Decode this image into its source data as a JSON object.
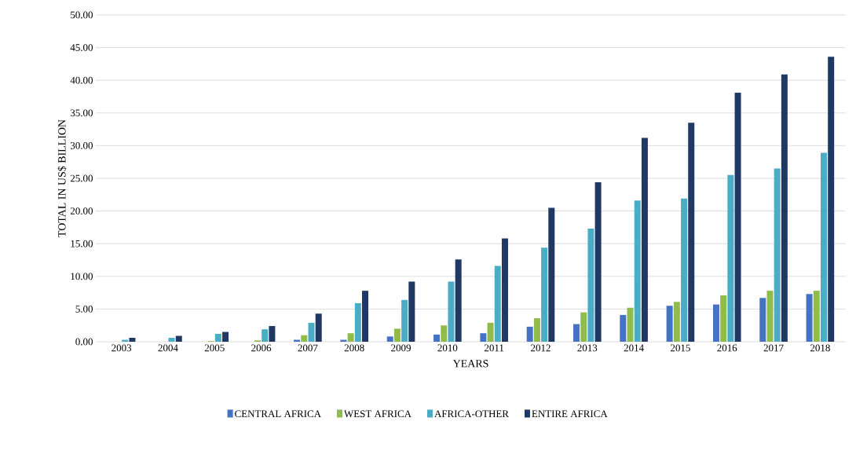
{
  "chart_data": {
    "type": "bar",
    "xlabel": "YEARS",
    "ylabel": "TOTAL IN US$ BILLION",
    "categories": [
      "2003",
      "2004",
      "2005",
      "2006",
      "2007",
      "2008",
      "2009",
      "2010",
      "2011",
      "2012",
      "2013",
      "2014",
      "2015",
      "2016",
      "2017",
      "2018"
    ],
    "series": [
      {
        "name": "CENTRAL AFRICA",
        "color": "#4472c4",
        "values": [
          0,
          0,
          0,
          0,
          0.3,
          0.3,
          0.8,
          1.1,
          1.3,
          2.3,
          2.7,
          4.1,
          5.5,
          5.7,
          6.7,
          7.3
        ]
      },
      {
        "name": "WEST AFRICA",
        "color": "#8fbc4a",
        "values": [
          0,
          0,
          0.1,
          0.2,
          1.0,
          1.3,
          2.0,
          2.5,
          2.9,
          3.6,
          4.5,
          5.2,
          6.1,
          7.1,
          7.8,
          7.8
        ]
      },
      {
        "name": "AFRICA-OTHER",
        "color": "#4bacc6",
        "values": [
          0.3,
          0.6,
          1.2,
          1.9,
          2.9,
          5.9,
          6.4,
          9.2,
          11.6,
          14.4,
          17.3,
          21.6,
          21.9,
          25.5,
          26.5,
          28.9
        ]
      },
      {
        "name": "ENTIRE AFRICA",
        "color": "#1f3864",
        "values": [
          0.6,
          0.9,
          1.5,
          2.4,
          4.3,
          7.8,
          9.2,
          12.6,
          15.8,
          20.5,
          24.4,
          31.2,
          33.5,
          38.1,
          40.9,
          43.6
        ]
      }
    ],
    "ylim": [
      0,
      50
    ],
    "yticks": [
      {
        "value": 0,
        "label": "0.00"
      },
      {
        "value": 5,
        "label": "5.00"
      },
      {
        "value": 10,
        "label": "10.00"
      },
      {
        "value": 15,
        "label": "15.00"
      },
      {
        "value": 20,
        "label": "20.00"
      },
      {
        "value": 25,
        "label": "25.00"
      },
      {
        "value": 30,
        "label": "30.00"
      },
      {
        "value": 35,
        "label": "35.00"
      },
      {
        "value": 40,
        "label": "40.00"
      },
      {
        "value": 45,
        "label": "45.00"
      },
      {
        "value": 50,
        "label": "50.00"
      }
    ],
    "grid": "y",
    "legend": "bottom"
  }
}
